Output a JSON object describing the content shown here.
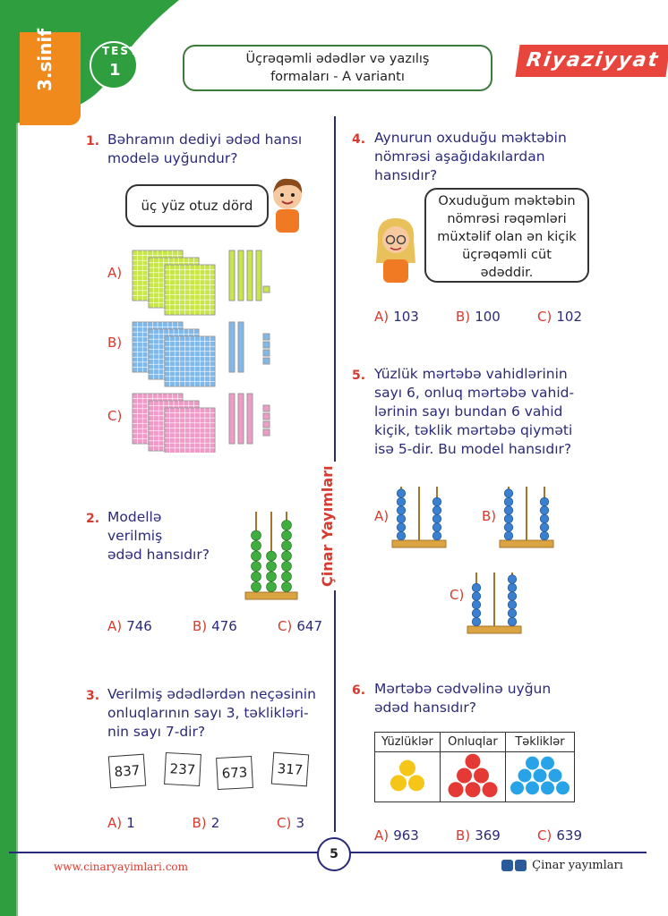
{
  "header": {
    "grade": "3.sinif",
    "test_word": "TEST",
    "test_number": "1",
    "title_line1": "Üçrəqəmli ədədlər və yazılış",
    "title_line2": "formaları - A variantı",
    "subject": "Riyaziyyat"
  },
  "publisher_vertical": "Çinar Yayımları",
  "q1": {
    "number": "1.",
    "text_line1": "Bəhramın dediyi ədəd hansı",
    "text_line2": "modelə uyğundur?",
    "speech": "üç yüz otuz dörd",
    "options": [
      {
        "label": "A)",
        "hundreds": 3,
        "tens": 4,
        "ones": 1,
        "color": "#c8e64a"
      },
      {
        "label": "B)",
        "hundreds": 3,
        "tens": 2,
        "ones": 4,
        "color": "#7fb8ea"
      },
      {
        "label": "C)",
        "hundreds": 3,
        "tens": 3,
        "ones": 4,
        "color": "#f09ac8"
      }
    ]
  },
  "q2": {
    "number": "2.",
    "text_line1": "Modellə",
    "text_line2": "verilmiş",
    "text_line3": "ədəd hansıdır?",
    "abacus": [
      6,
      4,
      7
    ],
    "options": [
      {
        "label": "A)",
        "value": "746"
      },
      {
        "label": "B)",
        "value": "476"
      },
      {
        "label": "C)",
        "value": "647"
      }
    ]
  },
  "q3": {
    "number": "3.",
    "text_line1": "Verilmiş ədədlərdən neçəsinin",
    "text_line2": "onluqlarının sayı 3, təklikləri-",
    "text_line3": "nin sayı 7-dir?",
    "cards": [
      "837",
      "237",
      "673",
      "317"
    ],
    "options": [
      {
        "label": "A)",
        "value": "1"
      },
      {
        "label": "B)",
        "value": "2"
      },
      {
        "label": "C)",
        "value": "3"
      }
    ]
  },
  "q4": {
    "number": "4.",
    "text_line1": "Aynurun oxuduğu məktəbin",
    "text_line2": "nömrəsi aşağıdakılardan",
    "text_line3": "hansıdır?",
    "speech_line1": "Oxuduğum məktəbin",
    "speech_line2": "nömrəsi rəqəmləri",
    "speech_line3": "müxtəlif olan ən kiçik",
    "speech_line4": "üçrəqəmli cüt",
    "speech_line5": "ədəddir.",
    "options": [
      {
        "label": "A)",
        "value": "103"
      },
      {
        "label": "B)",
        "value": "100"
      },
      {
        "label": "C)",
        "value": "102"
      }
    ]
  },
  "q5": {
    "number": "5.",
    "text_line1": "Yüzlük mərtəbə vahidlərinin",
    "text_line2": "sayı 6, onluq mərtəbə vahid-",
    "text_line3": "lərinin sayı bundan 6 vahid",
    "text_line4": "kiçik, təklik mərtəbə qiyməti",
    "text_line5": "isə 5-dir. Bu model hansıdır?",
    "options": [
      {
        "label": "A)",
        "beads": [
          6,
          0,
          5
        ]
      },
      {
        "label": "B)",
        "beads": [
          6,
          0,
          5
        ]
      },
      {
        "label": "C)",
        "beads": [
          5,
          0,
          6
        ]
      }
    ]
  },
  "q6": {
    "number": "6.",
    "text_line1": "Mərtəbə cədvəlinə uyğun",
    "text_line2": "ədəd hansıdır?",
    "columns": [
      {
        "header": "Yüzlüklər",
        "count": 3,
        "color": "#f5c518"
      },
      {
        "header": "Onluqlar",
        "count": 6,
        "color": "#e53935"
      },
      {
        "header": "Təkliklər",
        "count": 9,
        "color": "#29a3e8"
      }
    ],
    "options": [
      {
        "label": "A)",
        "value": "963"
      },
      {
        "label": "B)",
        "value": "369"
      },
      {
        "label": "C)",
        "value": "639"
      }
    ]
  },
  "footer": {
    "page": "5",
    "website": "www.cinaryayimlari.com",
    "social": "Çinar yayımları"
  }
}
